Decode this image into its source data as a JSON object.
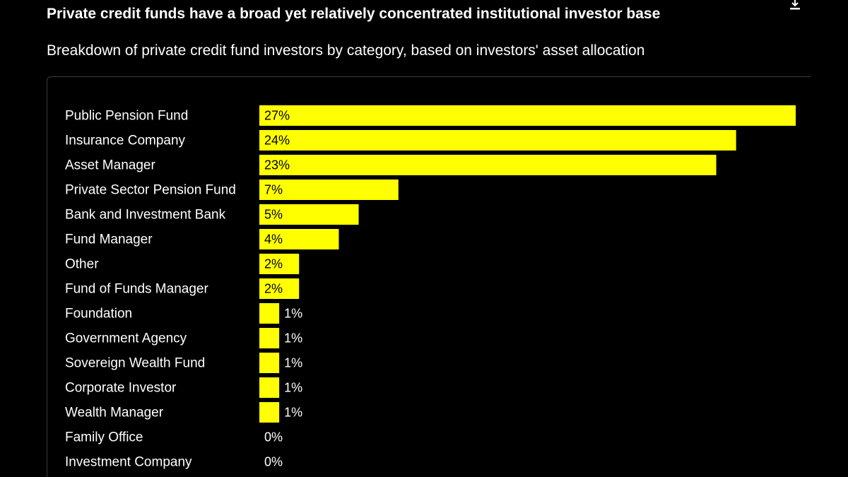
{
  "header": {
    "title": "Private credit funds have a broad yet relatively concentrated institutional investor base",
    "subtitle": "Breakdown of private credit fund investors by category, based on investors' asset allocation",
    "download_icon": "download-icon"
  },
  "colors": {
    "background": "#000000",
    "bar": "#ffff00",
    "text": "#ffffff",
    "label_on_bar": "#000000"
  },
  "chart_data": {
    "type": "bar",
    "orientation": "horizontal",
    "categories": [
      "Public Pension Fund",
      "Insurance Company",
      "Asset Manager",
      "Private Sector Pension Fund",
      "Bank and Investment Bank",
      "Fund Manager",
      "Other",
      "Fund of Funds Manager",
      "Foundation",
      "Government Agency",
      "Sovereign Wealth Fund",
      "Corporate Investor",
      "Wealth Manager",
      "Family Office",
      "Investment Company"
    ],
    "values": [
      27,
      24,
      23,
      7,
      5,
      4,
      2,
      2,
      1,
      1,
      1,
      1,
      1,
      0,
      0
    ],
    "value_labels": [
      "27%",
      "24%",
      "23%",
      "7%",
      "5%",
      "4%",
      "2%",
      "2%",
      "1%",
      "1%",
      "1%",
      "1%",
      "1%",
      "0%",
      "0%"
    ],
    "unit": "%",
    "xlim": [
      0,
      27
    ],
    "grid": false,
    "legend": "none"
  }
}
